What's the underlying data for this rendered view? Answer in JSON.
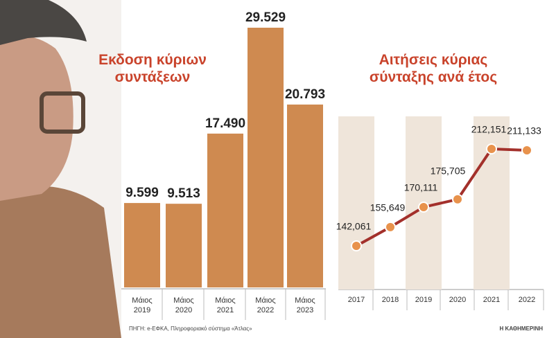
{
  "chart_data": [
    {
      "type": "bar",
      "title": "Εκδοση κύριων συντάξεων",
      "categories": [
        "Μάιος 2019",
        "Μάιος 2020",
        "Μάιος 2021",
        "Μάιος 2022",
        "Μάιος 2023"
      ],
      "values": [
        9599,
        9513,
        17490,
        29529,
        20793
      ],
      "value_labels": [
        "9.599",
        "9.513",
        "17.490",
        "29.529",
        "20.793"
      ],
      "color": "#cf8a50"
    },
    {
      "type": "line",
      "title": "Αιτήσεις κύριας σύνταξης ανά έτος",
      "categories": [
        "2017",
        "2018",
        "2019",
        "2020",
        "2021",
        "2022"
      ],
      "values": [
        142061,
        155649,
        170111,
        175705,
        212151,
        211133
      ],
      "value_labels": [
        "142,061",
        "155,649",
        "170,111",
        "175,705",
        "212,151",
        "211,133"
      ],
      "color": "#a3302b",
      "marker_color": "#e8924c"
    }
  ],
  "source": "ΠΗΓΗ: e-ΕΦΚΑ, Πληροφοριακό σύστημα «Άτλας»",
  "credit": "Η ΚΑΘΗΜΕΡΙΝΗ"
}
